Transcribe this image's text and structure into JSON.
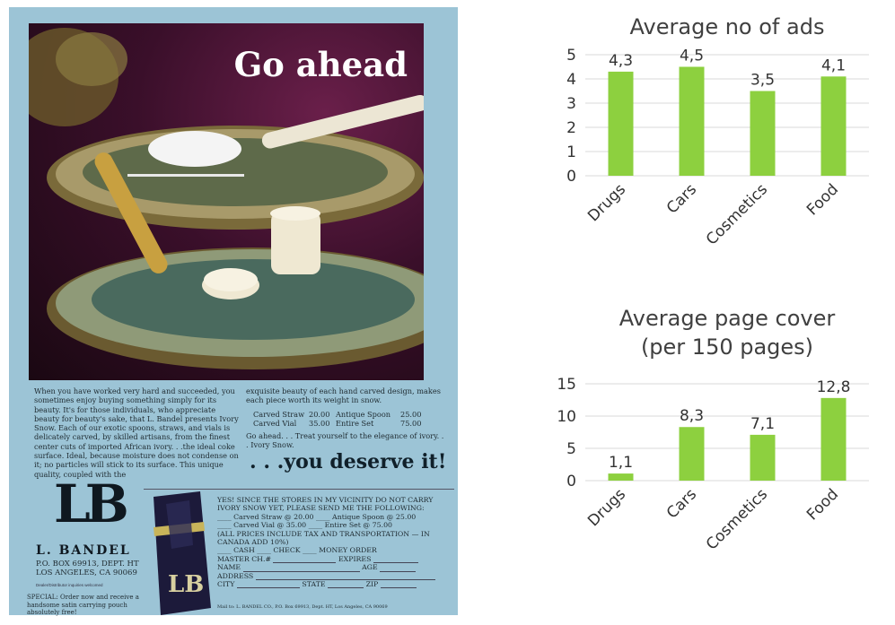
{
  "advertisement": {
    "headline": "Go ahead",
    "col1": "When you have worked very hard and succeeded, you sometimes enjoy buying something simply for its beauty. It's for those individuals, who appreciate beauty for beauty's sake, that L. Bandel presents Ivory Snow. Each of our exotic spoons, straws, and vials is delicately carved, by skilled artisans, from the finest center cuts of imported African ivory. . .the ideal coke surface. Ideal, because moisture does not condense on it; no particles will stick to its surface. This unique quality, coupled with the",
    "col2_intro": "exquisite beauty of each hand carved design, makes each piece worth its weight in snow.",
    "prices": [
      {
        "item": "Carved Straw",
        "price": "20.00"
      },
      {
        "item": "Antique Spoon",
        "price": "25.00"
      },
      {
        "item": "Carved Vial",
        "price": "35.00"
      },
      {
        "item": "Entire Set",
        "price": "75.00"
      }
    ],
    "col2_outro": "Go ahead. . . Treat yourself to the elegance of ivory. . . Ivory Snow.",
    "tagline": ". . .you deserve it!",
    "logo_monogram": "LB",
    "brand": "L. BANDEL",
    "address": [
      "P.O. BOX 69913, DEPT. HT",
      "LOS ANGELES, CA 90069"
    ],
    "dealer_note": "Dealer/Distributor inquiries welcomed",
    "special": "SPECIAL: Order now and receive a handsome satin carrying pouch absolutely free!",
    "pouch_monogram": "LB",
    "coupon": {
      "intro": "YES! SINCE THE STORES IN MY VICINITY DO NOT CARRY IVORY SNOW YET, PLEASE SEND ME THE FOLLOWING:",
      "row1": "Carved Straw  @ 20.00   ____ Antique Spoon @ 25.00",
      "row2": "Carved Vial  @ 35.00   ____ Entire Set  @ 75.00",
      "tax": "(ALL PRICES INCLUDE TAX AND TRANSPORTATION — IN CANADA ADD 10%)",
      "payment": "CASH   ____ CHECK   ____ MONEY ORDER",
      "master": "MASTER CH.#",
      "expires": "EXPIRES",
      "name": "NAME",
      "age": "AGE",
      "address": "ADDRESS",
      "city": "CITY",
      "state": "STATE",
      "zip": "ZIP",
      "mail_to": "Mail to: L. BANDEL CO., P.O. Box 69913, Dept. HT, Los Angeles, CA 90069"
    }
  },
  "colors": {
    "bar": "#8dd03f",
    "grid": "#d9d9d9",
    "ad_bg": "#9cc4d6"
  },
  "chart_data": [
    {
      "type": "bar",
      "title": "Average no of ads",
      "categories": [
        "Drugs",
        "Cars",
        "Cosmetics",
        "Food"
      ],
      "values": [
        4.3,
        4.5,
        3.5,
        4.1
      ],
      "data_labels": [
        "4,3",
        "4,5",
        "3,5",
        "4,1"
      ],
      "yticks": [
        0,
        1,
        2,
        3,
        4,
        5
      ],
      "ylim": [
        0,
        5
      ],
      "grid": true,
      "legend": "none"
    },
    {
      "type": "bar",
      "title": "Average page cover\n(per 150 pages)",
      "categories": [
        "Drugs",
        "Cars",
        "Cosmetics",
        "Food"
      ],
      "values": [
        1.1,
        8.3,
        7.1,
        12.8
      ],
      "data_labels": [
        "1,1",
        "8,3",
        "7,1",
        "12,8"
      ],
      "yticks": [
        0,
        5,
        10,
        15
      ],
      "ylim": [
        0,
        15
      ],
      "grid": true,
      "legend": "none"
    }
  ]
}
